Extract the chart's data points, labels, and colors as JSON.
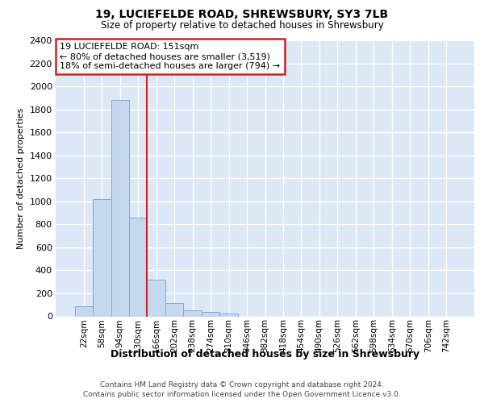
{
  "title1": "19, LUCIEFELDE ROAD, SHREWSBURY, SY3 7LB",
  "title2": "Size of property relative to detached houses in Shrewsbury",
  "xlabel": "Distribution of detached houses by size in Shrewsbury",
  "ylabel": "Number of detached properties",
  "bar_labels": [
    "22sqm",
    "58sqm",
    "94sqm",
    "130sqm",
    "166sqm",
    "202sqm",
    "238sqm",
    "274sqm",
    "310sqm",
    "346sqm",
    "382sqm",
    "418sqm",
    "454sqm",
    "490sqm",
    "526sqm",
    "562sqm",
    "598sqm",
    "634sqm",
    "670sqm",
    "706sqm",
    "742sqm"
  ],
  "bar_values": [
    90,
    1020,
    1880,
    855,
    320,
    115,
    50,
    40,
    25,
    0,
    0,
    0,
    0,
    0,
    0,
    0,
    0,
    0,
    0,
    0,
    0
  ],
  "bar_color": "#c5d8f0",
  "bar_edgecolor": "#7aadd4",
  "bg_color": "#dce8f5",
  "grid_color": "#ffffff",
  "annotation_line0": "19 LUCIEFELDE ROAD: 151sqm",
  "annotation_line1": "← 80% of detached houses are smaller (3,519)",
  "annotation_line2": "18% of semi-detached houses are larger (794) →",
  "vline_color": "#cc2222",
  "vline_bar_index": 3,
  "ylim": [
    0,
    2400
  ],
  "yticks": [
    0,
    200,
    400,
    600,
    800,
    1000,
    1200,
    1400,
    1600,
    1800,
    2000,
    2200,
    2400
  ],
  "footer1": "Contains HM Land Registry data © Crown copyright and database right 2024.",
  "footer2": "Contains public sector information licensed under the Open Government Licence v3.0."
}
